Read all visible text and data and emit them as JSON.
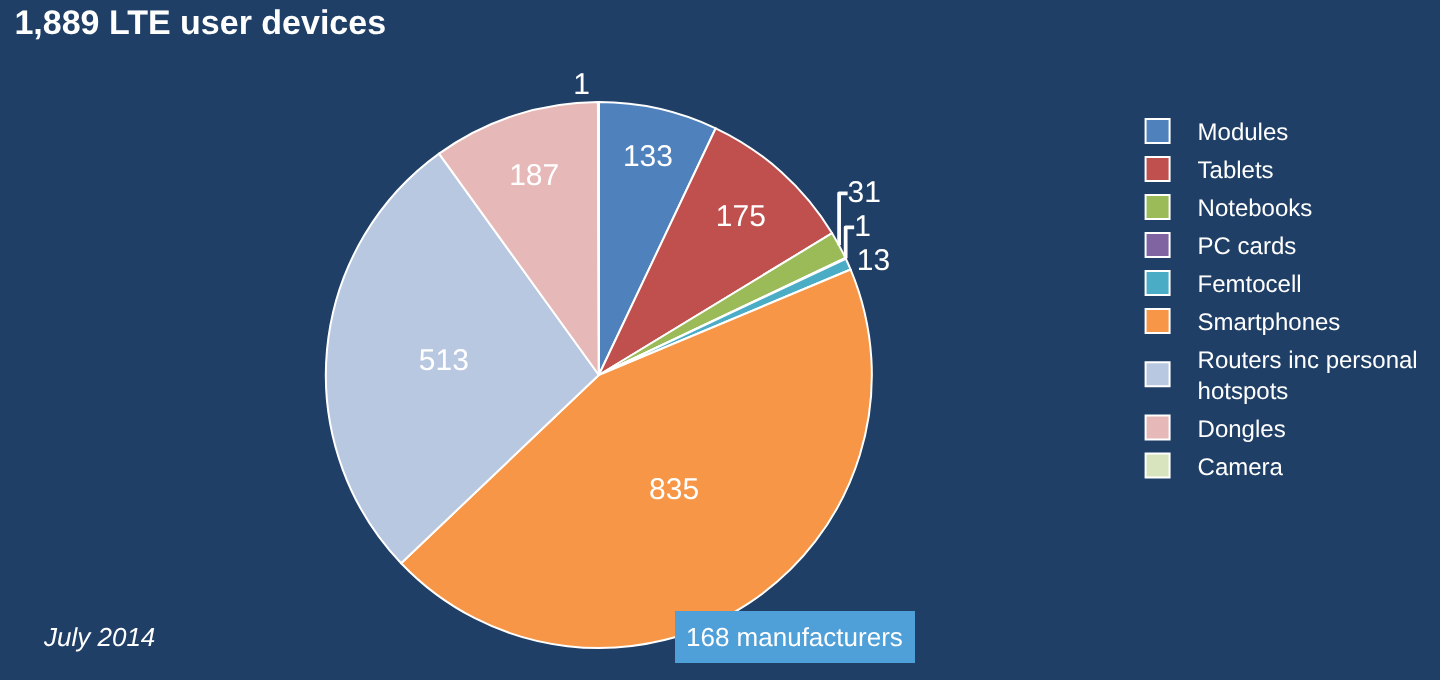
{
  "chart_data": {
    "type": "pie",
    "title": "1,889 LTE user devices",
    "categories": [
      "Modules",
      "Tablets",
      "Notebooks",
      "PC cards",
      "Femtocell",
      "Smartphones",
      "Routers inc personal hotspots",
      "Dongles",
      "Camera"
    ],
    "values": [
      133,
      175,
      31,
      1,
      13,
      835,
      513,
      187,
      1
    ],
    "colors": [
      "#4f81bd",
      "#c0504d",
      "#9bbb59",
      "#8064a2",
      "#4bacc6",
      "#f79646",
      "#b9c8e1",
      "#e6b9b8",
      "#d7e4bd"
    ],
    "data_labels": true,
    "legend": "right",
    "annotations": [
      "July 2014",
      "168 manufacturers"
    ]
  }
}
